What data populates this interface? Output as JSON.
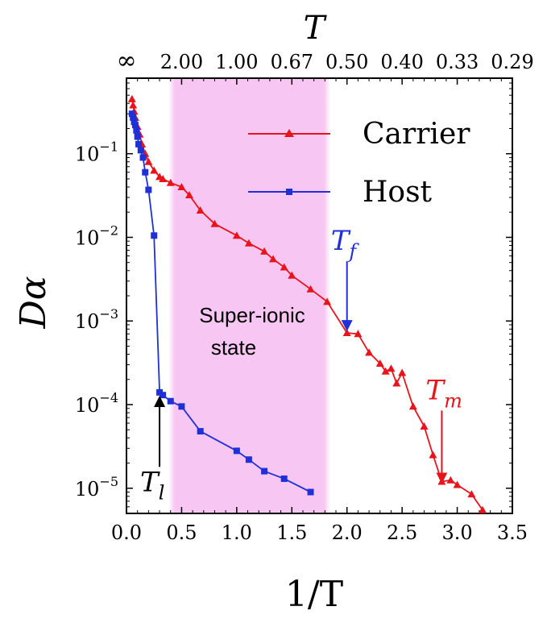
{
  "chart_data": {
    "type": "line",
    "xlabel": "1/T",
    "ylabel": "Dα",
    "top_axis_label": "T",
    "xlim": [
      0,
      3.5
    ],
    "ylim": [
      5e-06,
      0.8
    ],
    "yscale": "log",
    "grid": false,
    "legend_position": "top-right",
    "x_ticks": [
      "0.0",
      "0.5",
      "1.0",
      "1.5",
      "2.0",
      "2.5",
      "3.0",
      "3.5"
    ],
    "y_ticks": [
      {
        "value": 1e-05,
        "base": "10",
        "exp": "−5"
      },
      {
        "value": 0.0001,
        "base": "10",
        "exp": "−4"
      },
      {
        "value": 0.001,
        "base": "10",
        "exp": "−3"
      },
      {
        "value": 0.01,
        "base": "10",
        "exp": "−2"
      },
      {
        "value": 0.1,
        "base": "10",
        "exp": "−1"
      }
    ],
    "top_ticks": [
      {
        "x": 0.0,
        "label": "∞"
      },
      {
        "x": 0.5,
        "label": "2.00"
      },
      {
        "x": 1.0,
        "label": "1.00"
      },
      {
        "x": 1.5,
        "label": "0.67"
      },
      {
        "x": 2.0,
        "label": "0.50"
      },
      {
        "x": 2.5,
        "label": "0.40"
      },
      {
        "x": 3.0,
        "label": "0.33"
      },
      {
        "x": 3.5,
        "label": "0.29"
      }
    ],
    "series": [
      {
        "name": "Carrier",
        "color": "#e8141b",
        "marker": "triangle",
        "x": [
          0.05,
          0.06,
          0.07,
          0.08,
          0.1,
          0.12,
          0.14,
          0.17,
          0.2,
          0.25,
          0.3,
          0.33,
          0.4,
          0.5,
          0.57,
          0.67,
          0.8,
          1.0,
          1.11,
          1.25,
          1.33,
          1.43,
          1.5,
          1.67,
          1.82,
          2.0,
          2.1,
          2.2,
          2.3,
          2.35,
          2.4,
          2.45,
          2.5,
          2.6,
          2.7,
          2.78,
          2.86,
          2.94,
          3.0,
          3.13,
          3.23
        ],
        "y": [
          0.45,
          0.38,
          0.32,
          0.27,
          0.21,
          0.17,
          0.13,
          0.1,
          0.08,
          0.063,
          0.053,
          0.05,
          0.045,
          0.04,
          0.032,
          0.021,
          0.0145,
          0.0105,
          0.0085,
          0.0068,
          0.0055,
          0.0044,
          0.0035,
          0.0024,
          0.0017,
          0.00072,
          0.0007,
          0.00042,
          0.00031,
          0.00025,
          0.00027,
          0.00018,
          0.00024,
          9.5e-05,
          5.5e-05,
          2.5e-05,
          1.2e-05,
          1.25e-05,
          1.1e-05,
          8.5e-06,
          5.5e-06
        ]
      },
      {
        "name": "Host",
        "color": "#1f30d6",
        "marker": "square",
        "x": [
          0.05,
          0.06,
          0.07,
          0.08,
          0.09,
          0.1,
          0.11,
          0.13,
          0.15,
          0.17,
          0.2,
          0.25,
          0.3,
          0.33,
          0.4,
          0.5,
          0.67,
          1.0,
          1.11,
          1.25,
          1.43,
          1.67
        ],
        "y": [
          0.3,
          0.27,
          0.24,
          0.22,
          0.19,
          0.16,
          0.13,
          0.11,
          0.09,
          0.06,
          0.037,
          0.0105,
          0.00014,
          0.00013,
          0.00011,
          9.5e-05,
          4.8e-05,
          2.8e-05,
          2.2e-05,
          1.6e-05,
          1.3e-05,
          9e-06
        ]
      }
    ],
    "shaded_region": {
      "x0": 0.38,
      "x1": 1.85,
      "color": "#f7c6f2",
      "label_line1": "Super-ionic",
      "label_line2": "state"
    },
    "annotations": [
      {
        "id": "Tl",
        "symbol": "T",
        "subscript": "l",
        "color": "#000000",
        "arrow_x": 0.3,
        "arrow_to_y": 0.00012,
        "arrow_from_y": 1.8e-05
      },
      {
        "id": "Tf",
        "symbol": "T",
        "subscript": "f",
        "color": "#1f30d6",
        "arrow_x": 2.0,
        "arrow_to_y": 0.0008,
        "arrow_from_y": 0.0052
      },
      {
        "id": "Tm",
        "symbol": "T",
        "subscript": "m",
        "color": "#e8141b",
        "arrow_x": 2.86,
        "arrow_to_y": 1.2e-05,
        "arrow_from_y": 8.5e-05
      }
    ]
  }
}
